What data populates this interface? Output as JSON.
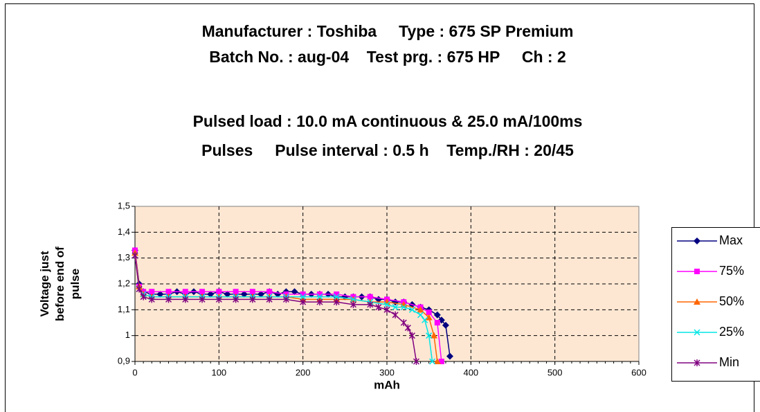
{
  "chart_data": {
    "type": "line",
    "title": [
      "Manufacturer : Toshiba     Type : 675 SP Premium",
      "Batch No. : aug-04    Test prg. : 675 HP     Ch : 2",
      "Pulsed load : 10.0 mA continuous & 25.0 mA/100ms",
      "Pulses     Pulse interval : 0.5 h    Temp./RH : 20/45"
    ],
    "xlabel": "mAh",
    "ylabel": [
      "Voltage just",
      "before end of",
      "pulse"
    ],
    "xlim": [
      0,
      600
    ],
    "xticks": [
      0,
      100,
      200,
      300,
      400,
      500,
      600
    ],
    "ylim": [
      0.9,
      1.5
    ],
    "yticks": [
      {
        "value": 0.9,
        "label": "0,9"
      },
      1,
      {
        "value": 1.1,
        "label": "1,1"
      },
      {
        "value": 1.2,
        "label": "1,2"
      },
      {
        "value": 1.3,
        "label": "1,3"
      },
      {
        "value": 1.4,
        "label": "1,4"
      },
      {
        "value": 1.5,
        "label": "1,5"
      }
    ],
    "grid": true,
    "legend": "right",
    "series": [
      {
        "name": "Max",
        "color": "#000080",
        "marker": "diamond",
        "x": [
          0,
          5,
          10,
          20,
          30,
          40,
          50,
          60,
          70,
          80,
          90,
          100,
          110,
          120,
          130,
          140,
          150,
          160,
          170,
          180,
          190,
          200,
          210,
          220,
          230,
          240,
          250,
          260,
          270,
          280,
          290,
          300,
          310,
          320,
          330,
          340,
          350,
          360,
          365,
          370,
          375
        ],
        "values": [
          1.33,
          1.2,
          1.17,
          1.16,
          1.16,
          1.16,
          1.17,
          1.16,
          1.17,
          1.16,
          1.16,
          1.17,
          1.16,
          1.16,
          1.16,
          1.16,
          1.16,
          1.17,
          1.16,
          1.17,
          1.17,
          1.16,
          1.16,
          1.16,
          1.16,
          1.15,
          1.15,
          1.15,
          1.15,
          1.15,
          1.14,
          1.14,
          1.13,
          1.13,
          1.12,
          1.11,
          1.1,
          1.08,
          1.06,
          1.04,
          0.92
        ]
      },
      {
        "name": "75%",
        "color": "#ff00ff",
        "marker": "square",
        "x": [
          0,
          5,
          10,
          20,
          40,
          60,
          80,
          100,
          120,
          140,
          160,
          180,
          200,
          220,
          240,
          260,
          280,
          300,
          320,
          340,
          350,
          360,
          365
        ],
        "values": [
          1.33,
          1.19,
          1.17,
          1.17,
          1.17,
          1.17,
          1.17,
          1.17,
          1.17,
          1.17,
          1.17,
          1.16,
          1.16,
          1.16,
          1.16,
          1.15,
          1.15,
          1.14,
          1.13,
          1.11,
          1.09,
          1.05,
          0.9
        ]
      },
      {
        "name": "50%",
        "color": "#ff6600",
        "marker": "triangle",
        "x": [
          0,
          5,
          10,
          20,
          40,
          60,
          80,
          100,
          120,
          140,
          160,
          180,
          200,
          220,
          240,
          260,
          280,
          300,
          320,
          340,
          350,
          356,
          360
        ],
        "values": [
          1.32,
          1.19,
          1.16,
          1.15,
          1.15,
          1.15,
          1.15,
          1.15,
          1.15,
          1.15,
          1.15,
          1.15,
          1.14,
          1.14,
          1.14,
          1.14,
          1.13,
          1.13,
          1.12,
          1.1,
          1.07,
          1.0,
          0.9
        ]
      },
      {
        "name": "25%",
        "color": "#00e5e5",
        "marker": "x",
        "x": [
          0,
          5,
          10,
          20,
          40,
          60,
          80,
          100,
          120,
          140,
          160,
          180,
          200,
          220,
          240,
          260,
          280,
          300,
          310,
          320,
          330,
          340,
          345,
          350,
          354
        ],
        "values": [
          1.31,
          1.18,
          1.16,
          1.15,
          1.15,
          1.15,
          1.15,
          1.15,
          1.15,
          1.15,
          1.15,
          1.15,
          1.15,
          1.15,
          1.15,
          1.14,
          1.13,
          1.12,
          1.11,
          1.11,
          1.1,
          1.08,
          1.06,
          1.0,
          0.9
        ]
      },
      {
        "name": "Min",
        "color": "#800080",
        "marker": "star",
        "x": [
          0,
          5,
          10,
          20,
          40,
          60,
          80,
          100,
          120,
          140,
          160,
          180,
          200,
          220,
          240,
          260,
          280,
          290,
          300,
          310,
          320,
          325,
          330,
          335
        ],
        "values": [
          1.31,
          1.18,
          1.15,
          1.14,
          1.14,
          1.14,
          1.14,
          1.14,
          1.14,
          1.14,
          1.14,
          1.14,
          1.13,
          1.13,
          1.13,
          1.12,
          1.12,
          1.11,
          1.1,
          1.08,
          1.05,
          1.03,
          1.0,
          0.9
        ]
      }
    ]
  }
}
